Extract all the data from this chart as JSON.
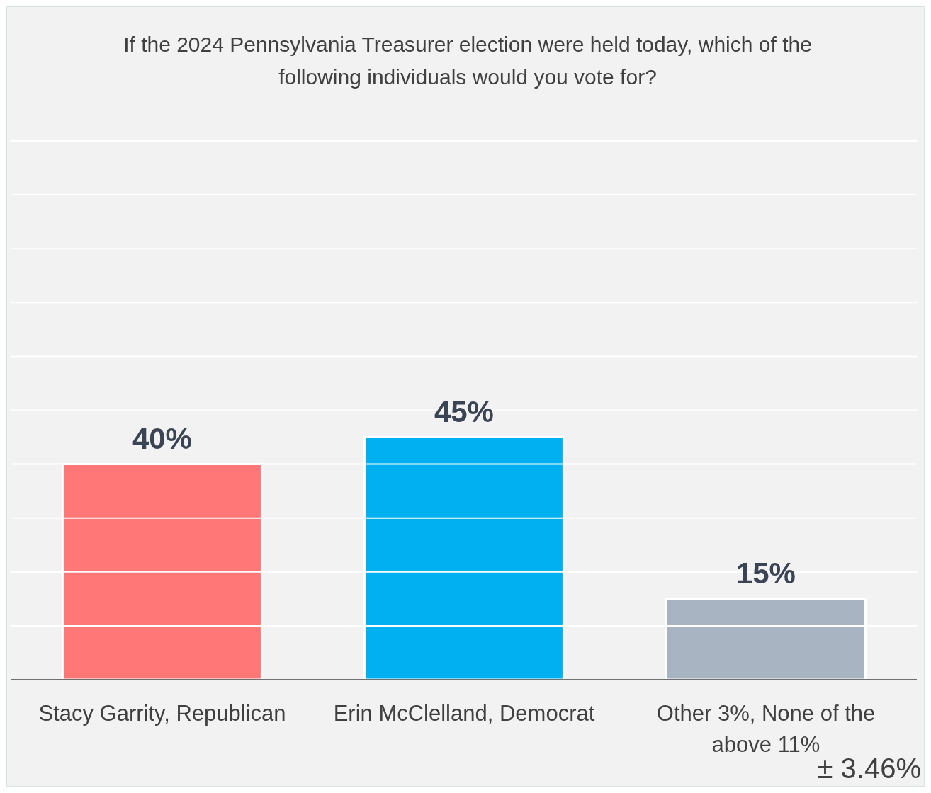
{
  "chart_data": {
    "type": "bar",
    "title": "If the 2024 Pennsylvania Treasurer election were held today, which of the following individuals would you vote for?",
    "categories": [
      "Stacy Garrity, Republican",
      "Erin McClelland, Democrat",
      "Other 3%, None of the above 11%"
    ],
    "values": [
      40,
      45,
      15
    ],
    "colors": [
      "#ff7777",
      "#00b0f0",
      "#a9b4c2"
    ],
    "value_labels": [
      "40%",
      "45%",
      "15%"
    ],
    "ylim": [
      0,
      100
    ],
    "yticks": [
      {
        "value": 0,
        "label": null
      },
      {
        "value": 10,
        "label": null
      },
      {
        "value": 20,
        "label": null
      },
      {
        "value": 30,
        "label": null
      },
      {
        "value": 40,
        "label": null
      },
      {
        "value": 50,
        "label": null
      },
      {
        "value": 60,
        "label": null
      },
      {
        "value": 70,
        "label": null
      },
      {
        "value": 80,
        "label": null
      },
      {
        "value": 90,
        "label": null
      },
      {
        "value": 100,
        "label": null
      }
    ],
    "tick_labels": "x",
    "grid": "y",
    "annotations": [
      "± 3.46%"
    ]
  }
}
